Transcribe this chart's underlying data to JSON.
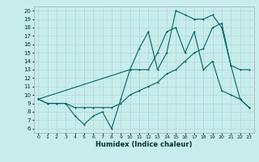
{
  "xlabel": "Humidex (Indice chaleur)",
  "bg_color": "#c8ecec",
  "grid_color": "#afd8d8",
  "line_color": "#006666",
  "xlim": [
    -0.5,
    23.5
  ],
  "ylim": [
    5.5,
    20.5
  ],
  "xticks": [
    0,
    1,
    2,
    3,
    4,
    5,
    6,
    7,
    8,
    9,
    10,
    11,
    12,
    13,
    14,
    15,
    16,
    17,
    18,
    19,
    20,
    21,
    22,
    23
  ],
  "yticks": [
    6,
    7,
    8,
    9,
    10,
    11,
    12,
    13,
    14,
    15,
    16,
    17,
    18,
    19,
    20
  ],
  "series1_x": [
    0,
    1,
    2,
    3,
    4,
    5,
    6,
    7,
    8,
    9,
    10,
    11,
    12,
    13,
    14,
    15,
    16,
    17,
    18,
    19,
    20,
    21,
    22,
    23
  ],
  "series1_y": [
    9.5,
    9.0,
    9.0,
    9.0,
    7.5,
    6.5,
    7.5,
    8.0,
    6.0,
    9.5,
    13.0,
    13.0,
    13.0,
    15.0,
    17.5,
    18.0,
    15.0,
    17.5,
    13.0,
    14.0,
    10.5,
    10.0,
    9.5,
    8.5
  ],
  "series2_x": [
    0,
    1,
    2,
    3,
    4,
    5,
    6,
    7,
    8,
    9,
    10,
    11,
    12,
    13,
    14,
    15,
    16,
    17,
    18,
    19,
    20,
    21,
    22,
    23
  ],
  "series2_y": [
    9.5,
    9.0,
    9.0,
    9.0,
    8.5,
    8.5,
    8.5,
    8.5,
    8.5,
    9.0,
    10.0,
    10.5,
    11.0,
    11.5,
    12.5,
    13.0,
    14.0,
    15.0,
    15.5,
    18.0,
    18.5,
    13.5,
    13.0,
    13.0
  ],
  "series3_x": [
    0,
    10,
    11,
    12,
    13,
    14,
    15,
    16,
    17,
    18,
    19,
    20,
    21,
    22,
    23
  ],
  "series3_y": [
    9.5,
    13.0,
    15.5,
    17.5,
    13.0,
    15.0,
    20.0,
    19.5,
    19.0,
    19.0,
    19.5,
    18.0,
    13.5,
    9.5,
    8.5
  ]
}
